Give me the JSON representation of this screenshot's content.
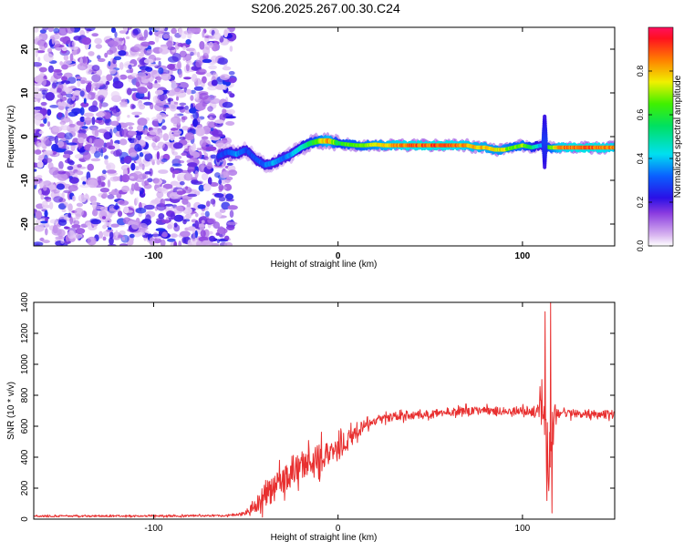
{
  "title": "S206.2025.267.00.30.C24",
  "chart_data": [
    {
      "type": "heatmap",
      "xlabel": "Height of straight line (km)",
      "ylabel": "Frequency (Hz)",
      "xlim": [
        -165,
        150
      ],
      "ylim": [
        -25,
        25
      ],
      "x_ticks": [
        -100,
        0,
        100
      ],
      "x_tick_labels": [
        "-100",
        "0",
        "100"
      ],
      "y_ticks": [
        -20,
        -10,
        0,
        10,
        20
      ],
      "y_tick_labels": [
        "-20",
        "-10",
        "0",
        "10",
        "20"
      ],
      "colorbar": {
        "label": "Normalized spectral amplitude",
        "range": [
          0,
          1
        ],
        "ticks": [
          0.0,
          0.2,
          0.4,
          0.6,
          0.8
        ],
        "tick_labels": [
          "0.0",
          "0.2",
          "0.4",
          "0.6",
          "0.8"
        ]
      },
      "noise_region_x": [
        -165,
        -62
      ],
      "ridge": {
        "x": [
          -65,
          -60,
          -55,
          -50,
          -45,
          -40,
          -35,
          -30,
          -25,
          -20,
          -15,
          -10,
          -5,
          0,
          5,
          10,
          15,
          20,
          25,
          30,
          40,
          50,
          60,
          70,
          75,
          80,
          85,
          90,
          95,
          100,
          105,
          110,
          115,
          120,
          130,
          140,
          150
        ],
        "frequency": [
          -4.5,
          -3.5,
          -4,
          -3,
          -5,
          -6.5,
          -6,
          -5,
          -4,
          -2.5,
          -1.5,
          -1,
          -1,
          -1.5,
          -1.8,
          -2,
          -2,
          -1.8,
          -2,
          -2,
          -2,
          -2,
          -2,
          -2,
          -2.5,
          -2.5,
          -3,
          -3,
          -2.5,
          -2,
          -2.5,
          -2,
          -2.5,
          -2.5,
          -2.5,
          -2.5,
          -2.5
        ],
        "amplitude": [
          0.3,
          0.3,
          0.4,
          0.3,
          0.3,
          0.35,
          0.4,
          0.35,
          0.4,
          0.5,
          0.6,
          0.75,
          0.9,
          0.6,
          0.7,
          0.7,
          0.75,
          0.8,
          0.85,
          0.9,
          0.95,
          0.95,
          0.95,
          0.9,
          0.85,
          0.85,
          0.8,
          0.8,
          0.7,
          0.75,
          0.6,
          0.4,
          0.7,
          0.9,
          0.95,
          0.95,
          0.9
        ]
      },
      "spike": {
        "x": 112,
        "frequency_range": [
          -7,
          5
        ]
      }
    },
    {
      "type": "line",
      "xlabel": "Height of straight line (km)",
      "ylabel": "SNR (10 * v/v)",
      "xlim": [
        -165,
        150
      ],
      "ylim": [
        0,
        1400
      ],
      "x_ticks": [
        -100,
        0,
        100
      ],
      "x_tick_labels": [
        "-100",
        "0",
        "100"
      ],
      "y_ticks": [
        0,
        200,
        400,
        600,
        800,
        1000,
        1200,
        1400
      ],
      "y_tick_labels": [
        "0",
        "200",
        "400",
        "600",
        "800",
        "1000",
        "1200",
        "1400"
      ],
      "series": [
        {
          "name": "SNR",
          "color": "#e83030",
          "x": [
            -165,
            -100,
            -60,
            -50,
            -45,
            -40,
            -35,
            -30,
            -25,
            -20,
            -15,
            -10,
            -5,
            0,
            5,
            10,
            15,
            20,
            30,
            40,
            50,
            60,
            70,
            80,
            90,
            100,
            105,
            108,
            110,
            112,
            114,
            116,
            118,
            120,
            130,
            140,
            150
          ],
          "mean": [
            20,
            20,
            22,
            40,
            80,
            150,
            200,
            260,
            310,
            350,
            380,
            400,
            430,
            450,
            500,
            560,
            600,
            640,
            660,
            670,
            680,
            690,
            700,
            700,
            700,
            700,
            690,
            700,
            700,
            720,
            400,
            700,
            680,
            680,
            680,
            680,
            680
          ],
          "noise": [
            10,
            10,
            10,
            25,
            60,
            140,
            160,
            160,
            150,
            160,
            160,
            160,
            150,
            130,
            110,
            80,
            60,
            50,
            45,
            45,
            45,
            45,
            45,
            45,
            45,
            45,
            45,
            70,
            200,
            400,
            600,
            300,
            80,
            45,
            45,
            45,
            45
          ],
          "annotated_peaks": [
            {
              "x": 112.3,
              "y": 1340
            },
            {
              "x": 113.2,
              "y": 120
            },
            {
              "x": 115.3,
              "y": 1400
            },
            {
              "x": 116.1,
              "y": 40
            }
          ]
        }
      ]
    }
  ]
}
